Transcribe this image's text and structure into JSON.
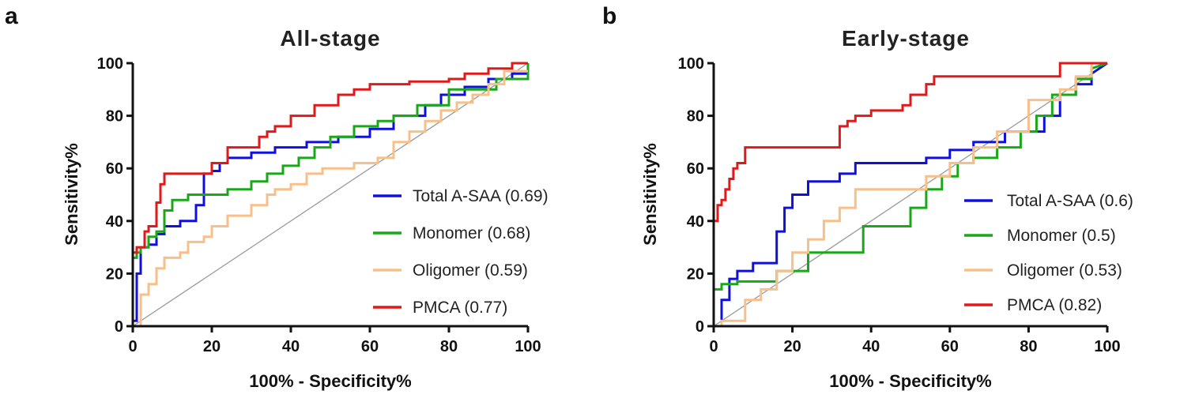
{
  "chart_data": [
    {
      "type": "line",
      "panel_label": "a",
      "title": "All-stage",
      "xlabel": "100% - Specificity%",
      "ylabel": "Sensitivity%",
      "xlim": [
        0,
        100
      ],
      "ylim": [
        0,
        100
      ],
      "xticks": [
        "0",
        "20",
        "40",
        "60",
        "80",
        "100"
      ],
      "yticks": [
        "0",
        "20",
        "40",
        "60",
        "80",
        "100"
      ],
      "grid": false,
      "legend_position": "bottom-right",
      "reference_line": {
        "name": "Reference line",
        "color": "#999999",
        "x": [
          0,
          100
        ],
        "y": [
          0,
          100
        ]
      },
      "series": [
        {
          "name": "Total A-SAA (0.69)",
          "color": "#1010dd",
          "x": [
            0,
            0,
            1,
            1,
            2,
            2,
            4,
            4,
            6,
            6,
            8,
            8,
            12,
            12,
            16,
            16,
            18,
            18,
            20,
            20,
            22,
            22,
            24,
            24,
            30,
            30,
            36,
            36,
            44,
            44,
            52,
            52,
            60,
            60,
            66,
            66,
            74,
            74,
            78,
            78,
            84,
            84,
            90,
            90,
            96,
            96,
            100,
            100
          ],
          "y": [
            0,
            2,
            2,
            20,
            20,
            30,
            30,
            31,
            31,
            35,
            35,
            38,
            38,
            40,
            40,
            46,
            46,
            58,
            58,
            59,
            59,
            62,
            62,
            64,
            64,
            66,
            66,
            68,
            68,
            70,
            70,
            72,
            72,
            75,
            75,
            80,
            80,
            84,
            84,
            88,
            88,
            91,
            91,
            94,
            94,
            96,
            96,
            100
          ]
        },
        {
          "name": "Monomer (0.68)",
          "color": "#1aa81a",
          "x": [
            0,
            0,
            1,
            1,
            2,
            2,
            4,
            4,
            6,
            6,
            8,
            8,
            10,
            10,
            14,
            14,
            18,
            18,
            24,
            24,
            30,
            30,
            34,
            34,
            38,
            38,
            42,
            42,
            46,
            46,
            50,
            50,
            56,
            56,
            62,
            62,
            66,
            66,
            72,
            72,
            80,
            80,
            92,
            92,
            100,
            100
          ],
          "y": [
            0,
            26,
            26,
            28,
            28,
            30,
            30,
            34,
            34,
            36,
            36,
            44,
            44,
            48,
            48,
            50,
            50,
            50,
            50,
            52,
            52,
            55,
            55,
            58,
            58,
            61,
            61,
            64,
            64,
            68,
            68,
            72,
            72,
            76,
            76,
            78,
            78,
            80,
            80,
            84,
            84,
            90,
            90,
            94,
            94,
            100
          ]
        },
        {
          "name": "Oligomer (0.59)",
          "color": "#f7c08a",
          "x": [
            2,
            2,
            4,
            4,
            6,
            6,
            8,
            8,
            12,
            12,
            14,
            14,
            18,
            18,
            20,
            20,
            24,
            24,
            30,
            30,
            34,
            34,
            36,
            36,
            40,
            40,
            44,
            44,
            48,
            48,
            56,
            56,
            62,
            62,
            66,
            66,
            70,
            70,
            74,
            74,
            78,
            78,
            82,
            82,
            86,
            86,
            90,
            90,
            94,
            94,
            100
          ],
          "y": [
            0,
            12,
            12,
            16,
            16,
            22,
            22,
            26,
            26,
            28,
            28,
            32,
            32,
            34,
            34,
            38,
            38,
            42,
            42,
            46,
            46,
            50,
            50,
            52,
            52,
            54,
            54,
            58,
            58,
            60,
            60,
            62,
            62,
            64,
            64,
            70,
            70,
            74,
            74,
            78,
            78,
            82,
            82,
            85,
            85,
            88,
            88,
            92,
            92,
            97,
            97
          ]
        },
        {
          "name": "PMCA (0.77)",
          "color": "#e01a1a",
          "x": [
            0,
            0,
            1,
            1,
            3,
            3,
            4,
            4,
            6,
            6,
            7,
            7,
            8,
            8,
            20,
            20,
            24,
            24,
            32,
            32,
            34,
            34,
            36,
            36,
            40,
            40,
            46,
            46,
            52,
            52,
            56,
            56,
            60,
            60,
            70,
            70,
            80,
            80,
            84,
            84,
            90,
            90,
            96,
            96,
            100
          ],
          "y": [
            0,
            28,
            28,
            30,
            30,
            36,
            36,
            38,
            38,
            47,
            47,
            54,
            54,
            58,
            58,
            62,
            62,
            68,
            68,
            72,
            72,
            74,
            74,
            76,
            76,
            80,
            80,
            84,
            84,
            88,
            88,
            90,
            90,
            92,
            92,
            93,
            93,
            94,
            94,
            96,
            96,
            98,
            98,
            100,
            100
          ]
        }
      ]
    },
    {
      "type": "line",
      "panel_label": "b",
      "title": "Early-stage",
      "xlabel": "100% - Specificity%",
      "ylabel": "Sensitivity%",
      "xlim": [
        0,
        100
      ],
      "ylim": [
        0,
        100
      ],
      "xticks": [
        "0",
        "20",
        "40",
        "60",
        "80",
        "100"
      ],
      "yticks": [
        "0",
        "20",
        "40",
        "60",
        "80",
        "100"
      ],
      "grid": false,
      "legend_position": "bottom-right",
      "reference_line": {
        "name": "Reference line",
        "color": "#999999",
        "x": [
          0,
          100
        ],
        "y": [
          0,
          100
        ]
      },
      "series": [
        {
          "name": "Total A-SAA (0.6)",
          "color": "#1010dd",
          "x": [
            0,
            2,
            2,
            4,
            4,
            6,
            6,
            10,
            10,
            16,
            16,
            18,
            18,
            20,
            20,
            24,
            24,
            32,
            32,
            36,
            36,
            54,
            54,
            60,
            60,
            66,
            66,
            74,
            74,
            84,
            84,
            88,
            88,
            92,
            92,
            96,
            96,
            100
          ],
          "y": [
            0,
            0,
            10,
            10,
            18,
            18,
            21,
            21,
            24,
            24,
            36,
            36,
            45,
            45,
            50,
            50,
            55,
            55,
            58,
            58,
            62,
            62,
            64,
            64,
            67,
            67,
            70,
            70,
            74,
            74,
            80,
            80,
            88,
            88,
            92,
            92,
            96,
            100
          ]
        },
        {
          "name": "Monomer (0.5)",
          "color": "#1aa81a",
          "x": [
            0,
            0,
            2,
            2,
            6,
            6,
            16,
            16,
            24,
            24,
            38,
            38,
            50,
            50,
            54,
            54,
            58,
            58,
            62,
            62,
            66,
            66,
            72,
            72,
            78,
            78,
            82,
            82,
            86,
            86,
            92,
            92,
            96,
            96,
            100
          ],
          "y": [
            0,
            14,
            14,
            16,
            16,
            17,
            17,
            21,
            21,
            28,
            28,
            38,
            38,
            45,
            45,
            52,
            52,
            57,
            57,
            62,
            62,
            64,
            64,
            68,
            68,
            74,
            74,
            80,
            80,
            88,
            88,
            94,
            94,
            98,
            100
          ]
        },
        {
          "name": "Oligomer (0.53)",
          "color": "#f7c08a",
          "x": [
            2,
            2,
            4,
            4,
            8,
            8,
            12,
            12,
            16,
            16,
            20,
            20,
            24,
            24,
            28,
            28,
            32,
            32,
            36,
            36,
            54,
            54,
            60,
            60,
            66,
            66,
            72,
            72,
            80,
            80,
            88,
            88,
            92,
            92,
            96,
            96,
            100
          ],
          "y": [
            0,
            2,
            2,
            2,
            2,
            10,
            10,
            14,
            14,
            21,
            21,
            28,
            28,
            33,
            33,
            40,
            40,
            45,
            45,
            52,
            52,
            57,
            57,
            62,
            62,
            68,
            68,
            74,
            74,
            86,
            86,
            90,
            90,
            95,
            95,
            100,
            100
          ]
        },
        {
          "name": "PMCA (0.82)",
          "color": "#e01a1a",
          "x": [
            0,
            0,
            1,
            1,
            2,
            2,
            3,
            3,
            4,
            4,
            5,
            5,
            6,
            6,
            8,
            8,
            32,
            32,
            34,
            34,
            36,
            36,
            40,
            40,
            48,
            48,
            50,
            50,
            54,
            54,
            56,
            56,
            88,
            88,
            100
          ],
          "y": [
            0,
            40,
            40,
            46,
            46,
            48,
            48,
            52,
            52,
            56,
            56,
            60,
            60,
            62,
            62,
            68,
            68,
            76,
            76,
            78,
            78,
            80,
            80,
            82,
            82,
            84,
            84,
            88,
            88,
            92,
            92,
            95,
            95,
            100,
            100
          ]
        }
      ]
    }
  ]
}
